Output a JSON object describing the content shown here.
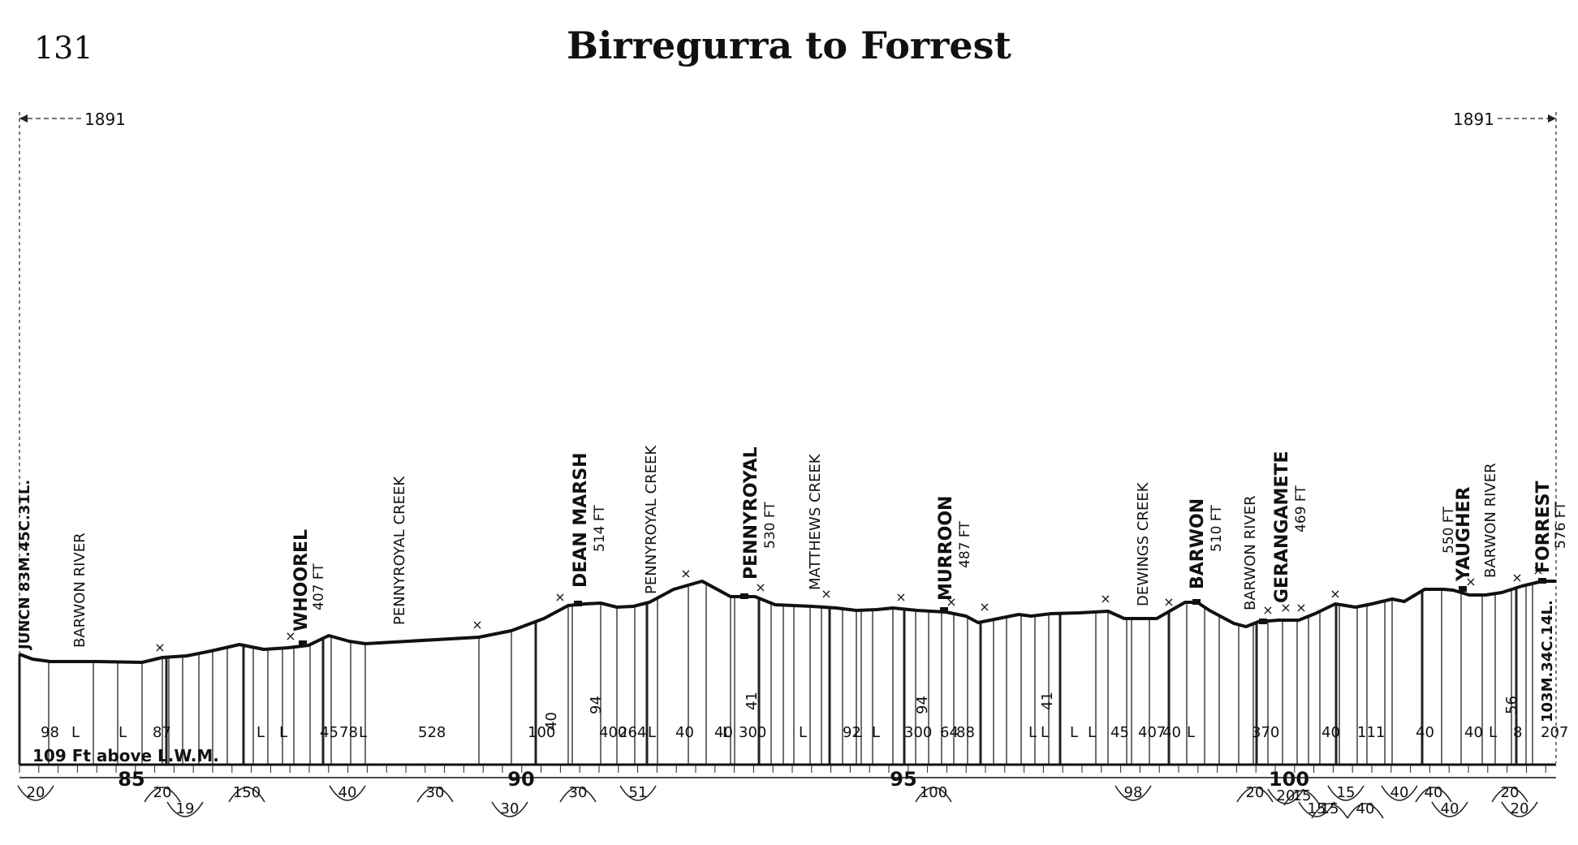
{
  "page_number": "131",
  "title": "Birregurra to Forrest",
  "year_left": "1891",
  "year_right": "1891",
  "datum_label": "109 Ft above L.W.M.",
  "start_label": "JUNCN 83M.45C.31L.",
  "end_label": "103M.34C.14L.",
  "stations": [
    {
      "name": "WHOOREL",
      "elevation": "407 FT"
    },
    {
      "name": "DEAN MARSH",
      "elevation": "514 FT"
    },
    {
      "name": "PENNYROYAL",
      "elevation": "530 FT"
    },
    {
      "name": "MURROON",
      "elevation": "487 FT"
    },
    {
      "name": "BARWON",
      "elevation": "510 FT"
    },
    {
      "name": "GERANGAMETE",
      "elevation": "469 FT"
    },
    {
      "name": "YAUGHER",
      "elevation": "550 FT"
    },
    {
      "name": "FORREST",
      "elevation": "576 FT"
    }
  ],
  "features": [
    "BARWON RIVER",
    "PENNYROYAL CREEK",
    "PENNYROYAL CREEK",
    "MATTHEWS CREEK",
    "DEWINGS CREEK",
    "BARWON RIVER",
    "BARWON RIVER"
  ],
  "mileposts": [
    "85",
    "90",
    "95",
    "100"
  ],
  "grades": [
    "98",
    "L",
    "L",
    "87",
    "L",
    "L",
    "45",
    "78",
    "L",
    "528",
    "100",
    "40",
    "400",
    "94",
    "264",
    "L",
    "40",
    "40",
    "L",
    "300",
    "41",
    "L",
    "92",
    "L",
    "L",
    "300",
    "94",
    "64",
    "88",
    "L",
    "L",
    "41",
    "L",
    "L",
    "45",
    "407",
    "40",
    "L",
    "370",
    "40",
    "111",
    "40",
    "40",
    "L",
    "8",
    "56",
    "207"
  ],
  "curves": [
    "20",
    "20",
    "19",
    "150",
    "40",
    "30",
    "30",
    "30",
    "51",
    "100",
    "98",
    "20",
    "20",
    "15",
    "15",
    "15",
    "15",
    "40",
    "40",
    "40",
    "40",
    "20",
    "20"
  ]
}
